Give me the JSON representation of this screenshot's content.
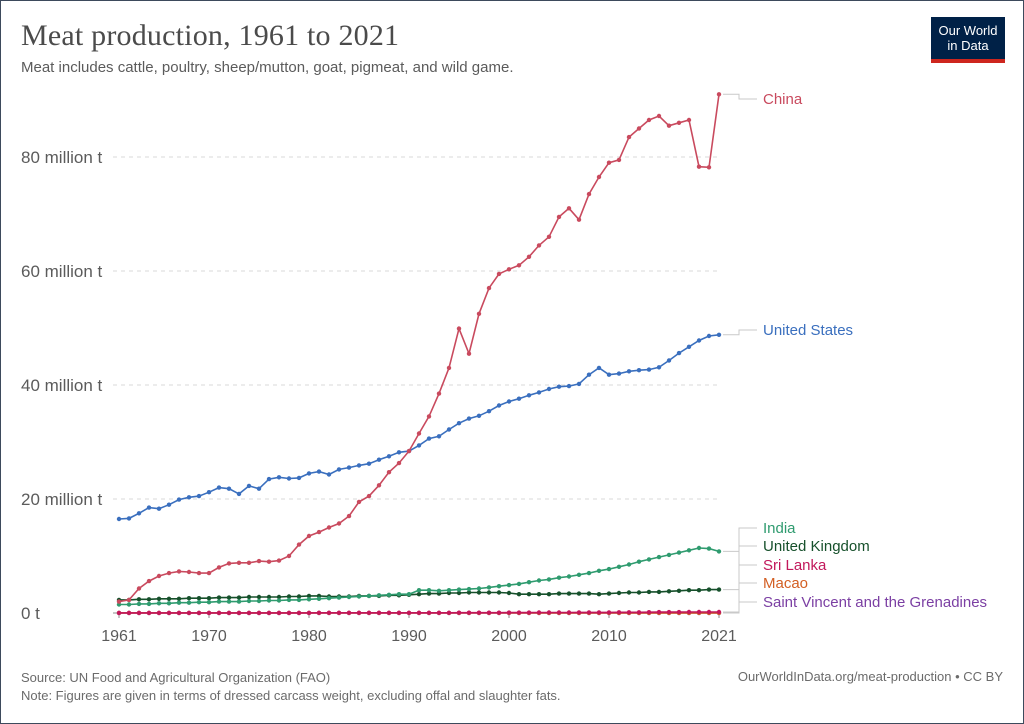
{
  "title": "Meat production, 1961 to 2021",
  "subtitle": "Meat includes cattle, poultry, sheep/mutton, goat, pigmeat, and wild game.",
  "logo": {
    "line1": "Our World",
    "line2": "in Data",
    "bg": "#002147",
    "accent": "#ce261e"
  },
  "footer": {
    "source": "Source: UN Food and Agricultural Organization (FAO)",
    "note": "Note: Figures are given in terms of dressed carcass weight, excluding offal and slaughter fats.",
    "credit": "OurWorldInData.org/meat-production • CC BY"
  },
  "chart_data": {
    "type": "line",
    "title": "Meat production, 1961 to 2021",
    "xlabel": "",
    "ylabel": "",
    "unit": "t",
    "ylim": [
      0,
      90000000
    ],
    "y_ticks": [
      {
        "value": 0,
        "label": "0 t"
      },
      {
        "value": 20000000,
        "label": "20 million t"
      },
      {
        "value": 40000000,
        "label": "40 million t"
      },
      {
        "value": 60000000,
        "label": "60 million t"
      },
      {
        "value": 80000000,
        "label": "80 million t"
      }
    ],
    "x_ticks": [
      {
        "value": 1961,
        "label": "1961"
      },
      {
        "value": 1970,
        "label": "1970"
      },
      {
        "value": 1980,
        "label": "1980"
      },
      {
        "value": 1990,
        "label": "1990"
      },
      {
        "value": 2000,
        "label": "2000"
      },
      {
        "value": 2010,
        "label": "2010"
      },
      {
        "value": 2021,
        "label": "2021"
      }
    ],
    "grid": "horizontal dashed",
    "legend_placement": "right, labels at line ends",
    "x": [
      1961,
      1962,
      1963,
      1964,
      1965,
      1966,
      1967,
      1968,
      1969,
      1970,
      1971,
      1972,
      1973,
      1974,
      1975,
      1976,
      1977,
      1978,
      1979,
      1980,
      1981,
      1982,
      1983,
      1984,
      1985,
      1986,
      1987,
      1988,
      1989,
      1990,
      1991,
      1992,
      1993,
      1994,
      1995,
      1996,
      1997,
      1998,
      1999,
      2000,
      2001,
      2002,
      2003,
      2004,
      2005,
      2006,
      2007,
      2008,
      2009,
      2010,
      2011,
      2012,
      2013,
      2014,
      2015,
      2016,
      2017,
      2018,
      2019,
      2020,
      2021
    ],
    "series": [
      {
        "name": "China",
        "color": "#c94a5e",
        "values": [
          2000000,
          2300000,
          4300000,
          5600000,
          6500000,
          7000000,
          7300000,
          7200000,
          7000000,
          7000000,
          8000000,
          8700000,
          8800000,
          8800000,
          9100000,
          9000000,
          9200000,
          10000000,
          12000000,
          13500000,
          14200000,
          15000000,
          15700000,
          17000000,
          19500000,
          20500000,
          22400000,
          24700000,
          26300000,
          28400000,
          31500000,
          34500000,
          38500000,
          43000000,
          49900000,
          45500000,
          52500000,
          57000000,
          59500000,
          60300000,
          61000000,
          62500000,
          64500000,
          66000000,
          69500000,
          71000000,
          69000000,
          73500000,
          76500000,
          79000000,
          79500000,
          83500000,
          85000000,
          86500000,
          87200000,
          85500000,
          86000000,
          86500000,
          78300000,
          78200000,
          91000000
        ]
      },
      {
        "name": "United States",
        "color": "#3a6fbe",
        "values": [
          16500000,
          16600000,
          17500000,
          18500000,
          18300000,
          19000000,
          19900000,
          20300000,
          20500000,
          21200000,
          22000000,
          21800000,
          20900000,
          22300000,
          21800000,
          23500000,
          23800000,
          23600000,
          23700000,
          24500000,
          24800000,
          24300000,
          25200000,
          25500000,
          25900000,
          26200000,
          26900000,
          27500000,
          28200000,
          28400000,
          29400000,
          30600000,
          31000000,
          32200000,
          33300000,
          34100000,
          34600000,
          35400000,
          36400000,
          37100000,
          37600000,
          38200000,
          38700000,
          39300000,
          39700000,
          39800000,
          40200000,
          41800000,
          43000000,
          41800000,
          42000000,
          42400000,
          42600000,
          42700000,
          43100000,
          44300000,
          45600000,
          46700000,
          47800000,
          48600000,
          48800000
        ]
      },
      {
        "name": "India",
        "color": "#2f9b6f",
        "values": [
          1500000,
          1500000,
          1600000,
          1600000,
          1700000,
          1700000,
          1800000,
          1800000,
          1900000,
          1900000,
          2000000,
          2000000,
          2000000,
          2100000,
          2100000,
          2200000,
          2200000,
          2300000,
          2300000,
          2400000,
          2500000,
          2600000,
          2700000,
          2800000,
          2900000,
          3000000,
          3100000,
          3200000,
          3300000,
          3300000,
          4000000,
          4000000,
          3900000,
          4000000,
          4100000,
          4200000,
          4300000,
          4500000,
          4700000,
          4900000,
          5100000,
          5400000,
          5700000,
          5900000,
          6200000,
          6400000,
          6700000,
          7000000,
          7400000,
          7700000,
          8100000,
          8500000,
          9000000,
          9400000,
          9800000,
          10200000,
          10600000,
          11000000,
          11400000,
          11300000,
          10800000
        ]
      },
      {
        "name": "United Kingdom",
        "color": "#16502b",
        "values": [
          2300000,
          2300000,
          2400000,
          2400000,
          2500000,
          2500000,
          2500000,
          2600000,
          2600000,
          2600000,
          2700000,
          2700000,
          2700000,
          2800000,
          2800000,
          2800000,
          2800000,
          2900000,
          2900000,
          3000000,
          3000000,
          2900000,
          2900000,
          2900000,
          3000000,
          3000000,
          3000000,
          3100000,
          3100000,
          3200000,
          3300000,
          3400000,
          3400000,
          3500000,
          3500000,
          3600000,
          3600000,
          3600000,
          3600000,
          3500000,
          3300000,
          3300000,
          3300000,
          3300000,
          3400000,
          3400000,
          3400000,
          3400000,
          3300000,
          3400000,
          3500000,
          3600000,
          3600000,
          3700000,
          3700000,
          3800000,
          3900000,
          4000000,
          4000000,
          4100000,
          4100000
        ]
      },
      {
        "name": "Sri Lanka",
        "color": "#c2185b",
        "values": [
          20000,
          20000,
          20000,
          20000,
          20000,
          20000,
          20000,
          20000,
          20000,
          20000,
          20000,
          20000,
          20000,
          20000,
          20000,
          20000,
          20000,
          20000,
          20000,
          20000,
          30000,
          30000,
          30000,
          30000,
          30000,
          30000,
          30000,
          30000,
          30000,
          40000,
          40000,
          40000,
          40000,
          40000,
          50000,
          50000,
          50000,
          60000,
          60000,
          70000,
          70000,
          70000,
          80000,
          80000,
          90000,
          90000,
          100000,
          100000,
          110000,
          110000,
          120000,
          130000,
          130000,
          140000,
          150000,
          150000,
          160000,
          170000,
          170000,
          180000,
          180000
        ]
      },
      {
        "name": "Macao",
        "color": "#d35f23",
        "values": [
          10000,
          10000,
          10000,
          10000,
          10000,
          10000,
          10000,
          10000,
          10000,
          10000,
          10000,
          10000,
          10000,
          10000,
          10000,
          10000,
          10000,
          10000,
          10000,
          10000,
          10000,
          10000,
          10000,
          10000,
          10000,
          10000,
          10000,
          10000,
          10000,
          10000,
          10000,
          10000,
          10000,
          10000,
          10000,
          10000,
          10000,
          10000,
          10000,
          10000,
          10000,
          10000,
          10000,
          10000,
          10000,
          10000,
          10000,
          10000,
          10000,
          10000,
          10000,
          10000,
          10000,
          10000,
          10000,
          10000,
          10000,
          10000,
          10000,
          10000,
          10000
        ]
      },
      {
        "name": "Saint Vincent and the Grenadines",
        "color": "#7b3fa3",
        "values": [
          1000,
          1000,
          1000,
          1000,
          1000,
          1000,
          1000,
          1000,
          1000,
          1000,
          1000,
          1000,
          1000,
          1000,
          1000,
          1000,
          1000,
          1000,
          1000,
          1000,
          1000,
          1000,
          1000,
          1000,
          1000,
          1000,
          1000,
          1000,
          1000,
          1000,
          1000,
          1000,
          1000,
          1000,
          1000,
          1000,
          1000,
          1000,
          1000,
          1000,
          1000,
          1000,
          1000,
          1000,
          1000,
          1000,
          1000,
          1000,
          1000,
          1000,
          1000,
          1000,
          1000,
          1000,
          1000,
          1000,
          1000,
          1000,
          1000,
          1000,
          1000
        ]
      }
    ]
  }
}
